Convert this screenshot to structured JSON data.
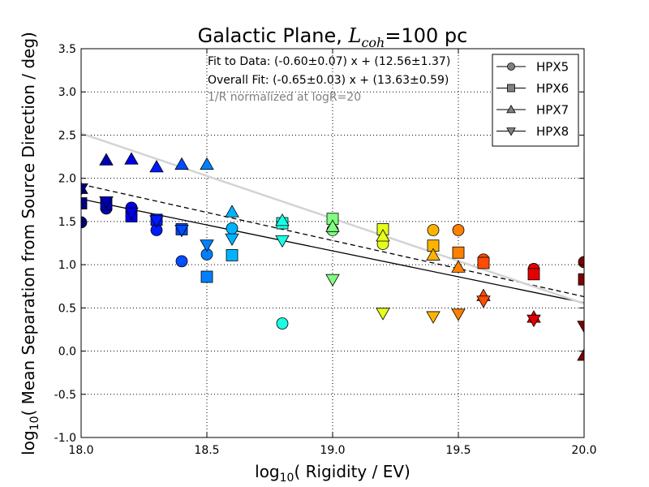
{
  "chart_data": {
    "type": "scatter",
    "title": "Galactic Plane, ",
    "title_math_symbol": "L",
    "title_math_subscript": "coh",
    "title_suffix": "=100 pc",
    "xlabel_prefix": "log",
    "xlabel_subscript": "10",
    "xlabel": "( Rigidity / EV)",
    "ylabel_prefix": "log",
    "ylabel_subscript": "10",
    "ylabel": "( Mean Separation from Source Direction / deg)",
    "xlim": [
      18.0,
      20.0
    ],
    "ylim": [
      -1.0,
      3.5
    ],
    "x_ticks": [
      "18.0",
      "18.5",
      "19.0",
      "19.5",
      "20.0"
    ],
    "y_ticks": [
      "-1.0",
      "-0.5",
      "0.0",
      "0.5",
      "1.0",
      "1.5",
      "2.0",
      "2.5",
      "3.0",
      "3.5"
    ],
    "grid": true,
    "legend_position": "top-right",
    "annotations": [
      "Fit to Data: (-0.60±0.07) x + (12.56±1.37)",
      "Overall Fit: (-0.65±0.03) x + (13.63±0.59)",
      "1/R normalized at logR=20"
    ],
    "fit_lines": [
      {
        "slope": -0.6,
        "intercept": 12.56,
        "style": "solid",
        "color": "#000000"
      },
      {
        "slope": -0.65,
        "intercept": 13.63,
        "style": "dashed",
        "color": "#000000"
      },
      {
        "x": [
          18.0,
          20.0
        ],
        "y": [
          2.52,
          0.55
        ],
        "style": "solid",
        "color": "#d3d3d3"
      }
    ],
    "series": [
      {
        "name": "HPX5",
        "marker": "circle",
        "points": [
          [
            18.0,
            1.49
          ],
          [
            18.1,
            1.65
          ],
          [
            18.2,
            1.66
          ],
          [
            18.3,
            1.4
          ],
          [
            18.4,
            1.04
          ],
          [
            18.5,
            1.12
          ],
          [
            18.6,
            1.42
          ],
          [
            18.8,
            0.32
          ],
          [
            19.0,
            1.4
          ],
          [
            19.2,
            1.24
          ],
          [
            19.4,
            1.4
          ],
          [
            19.5,
            1.4
          ],
          [
            19.6,
            1.06
          ],
          [
            19.8,
            0.95
          ],
          [
            20.0,
            1.03
          ]
        ]
      },
      {
        "name": "HPX6",
        "marker": "square",
        "points": [
          [
            18.0,
            1.71
          ],
          [
            18.1,
            1.7
          ],
          [
            18.2,
            1.56
          ],
          [
            18.3,
            1.52
          ],
          [
            18.4,
            1.41
          ],
          [
            18.5,
            0.86
          ],
          [
            18.6,
            1.11
          ],
          [
            18.8,
            1.48
          ],
          [
            19.0,
            1.53
          ],
          [
            19.2,
            1.41
          ],
          [
            19.4,
            1.22
          ],
          [
            19.5,
            1.14
          ],
          [
            19.6,
            1.02
          ],
          [
            19.8,
            0.89
          ],
          [
            20.0,
            0.83
          ]
        ]
      },
      {
        "name": "HPX7",
        "marker": "triangle-up",
        "points": [
          [
            18.0,
            1.88
          ],
          [
            18.1,
            2.21
          ],
          [
            18.2,
            2.22
          ],
          [
            18.3,
            2.13
          ],
          [
            18.4,
            2.16
          ],
          [
            18.5,
            2.16
          ],
          [
            18.6,
            1.61
          ],
          [
            18.8,
            1.51
          ],
          [
            19.0,
            1.44
          ],
          [
            19.2,
            1.33
          ],
          [
            19.4,
            1.11
          ],
          [
            19.5,
            0.97
          ],
          [
            19.6,
            0.64
          ],
          [
            19.8,
            0.39
          ],
          [
            20.0,
            -0.05
          ]
        ]
      },
      {
        "name": "HPX8",
        "marker": "triangle-down",
        "points": [
          [
            18.0,
            1.88
          ],
          [
            18.1,
            1.73
          ],
          [
            18.2,
            1.6
          ],
          [
            18.3,
            1.51
          ],
          [
            18.4,
            1.4
          ],
          [
            18.5,
            1.23
          ],
          [
            18.6,
            1.3
          ],
          [
            18.8,
            1.28
          ],
          [
            19.0,
            0.83
          ],
          [
            19.2,
            0.44
          ],
          [
            19.4,
            0.4
          ],
          [
            19.5,
            0.43
          ],
          [
            19.6,
            0.58
          ],
          [
            19.8,
            0.36
          ],
          [
            20.0,
            0.29
          ]
        ]
      }
    ]
  }
}
